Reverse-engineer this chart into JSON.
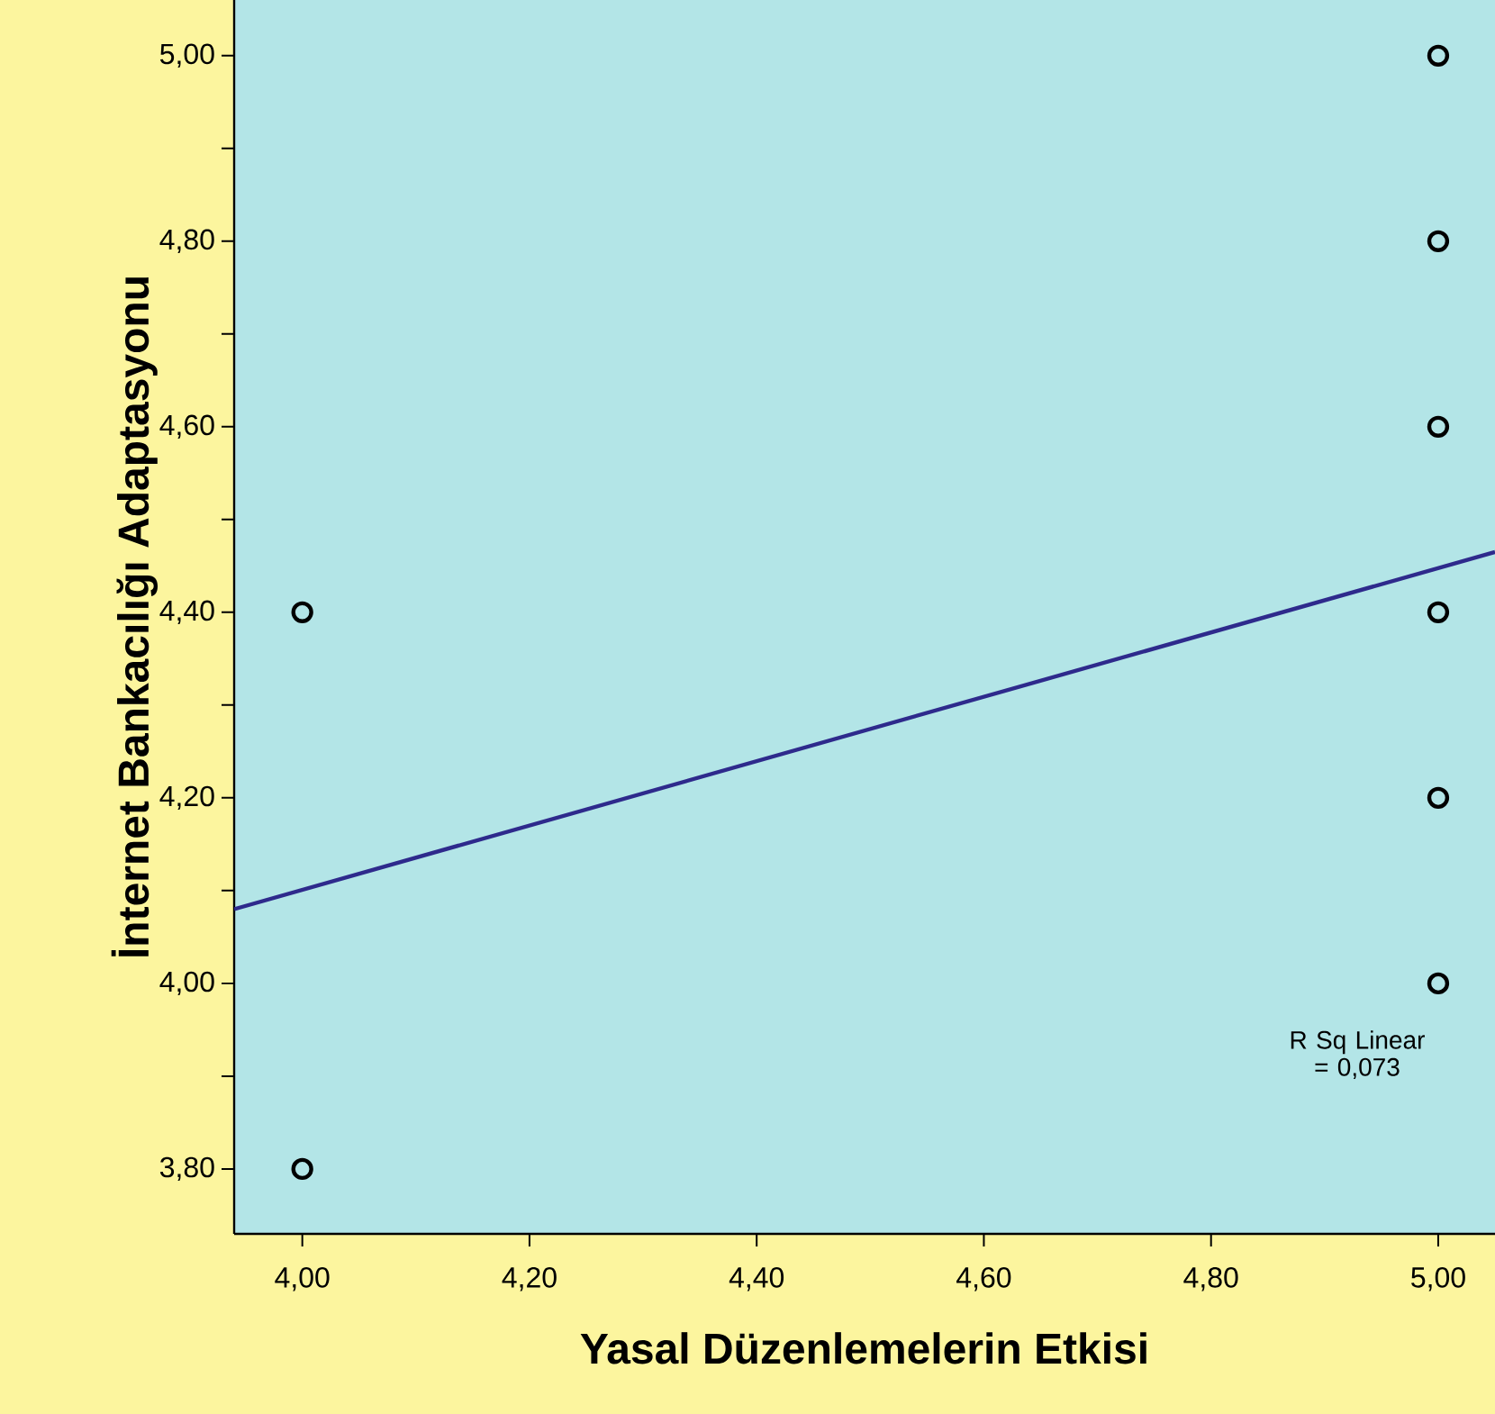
{
  "chart_data": {
    "type": "scatter",
    "xlabel": "Yasal Düzenlemelerin Etkisi",
    "ylabel": "İnternet Bankacılığı Adaptasyonu",
    "xlim": [
      3.94,
      5.05
    ],
    "ylim": [
      3.73,
      5.06
    ],
    "xticks": [
      {
        "value": 4.0,
        "label": "4,00"
      },
      {
        "value": 4.2,
        "label": "4,20"
      },
      {
        "value": 4.4,
        "label": "4,40"
      },
      {
        "value": 4.6,
        "label": "4,60"
      },
      {
        "value": 4.8,
        "label": "4,80"
      },
      {
        "value": 5.0,
        "label": "5,00"
      }
    ],
    "yticks": [
      {
        "value": 3.8,
        "label": "3,80"
      },
      {
        "value": 3.9,
        "label": null
      },
      {
        "value": 4.0,
        "label": "4,00"
      },
      {
        "value": 4.1,
        "label": null
      },
      {
        "value": 4.2,
        "label": "4,20"
      },
      {
        "value": 4.3,
        "label": null
      },
      {
        "value": 4.4,
        "label": "4,40"
      },
      {
        "value": 4.5,
        "label": null
      },
      {
        "value": 4.6,
        "label": "4,60"
      },
      {
        "value": 4.7,
        "label": null
      },
      {
        "value": 4.8,
        "label": "4,80"
      },
      {
        "value": 4.9,
        "label": null
      },
      {
        "value": 5.0,
        "label": "5,00"
      }
    ],
    "series": [
      {
        "color": "#000000",
        "marker": "circle",
        "x": [
          4.0,
          4.0,
          5.0,
          5.0,
          5.0,
          5.0,
          5.0,
          5.0
        ],
        "values": [
          4.4,
          3.8,
          5.0,
          4.8,
          4.6,
          4.4,
          4.2,
          4.0
        ]
      },
      {
        "type": "line",
        "color": "#2e2a8c",
        "marker": "none",
        "line_style": "solid",
        "x": [
          3.94,
          5.05
        ],
        "values": [
          4.08,
          4.465
        ]
      }
    ],
    "annotations": [
      "R Sq Linear = 0,073"
    ]
  }
}
